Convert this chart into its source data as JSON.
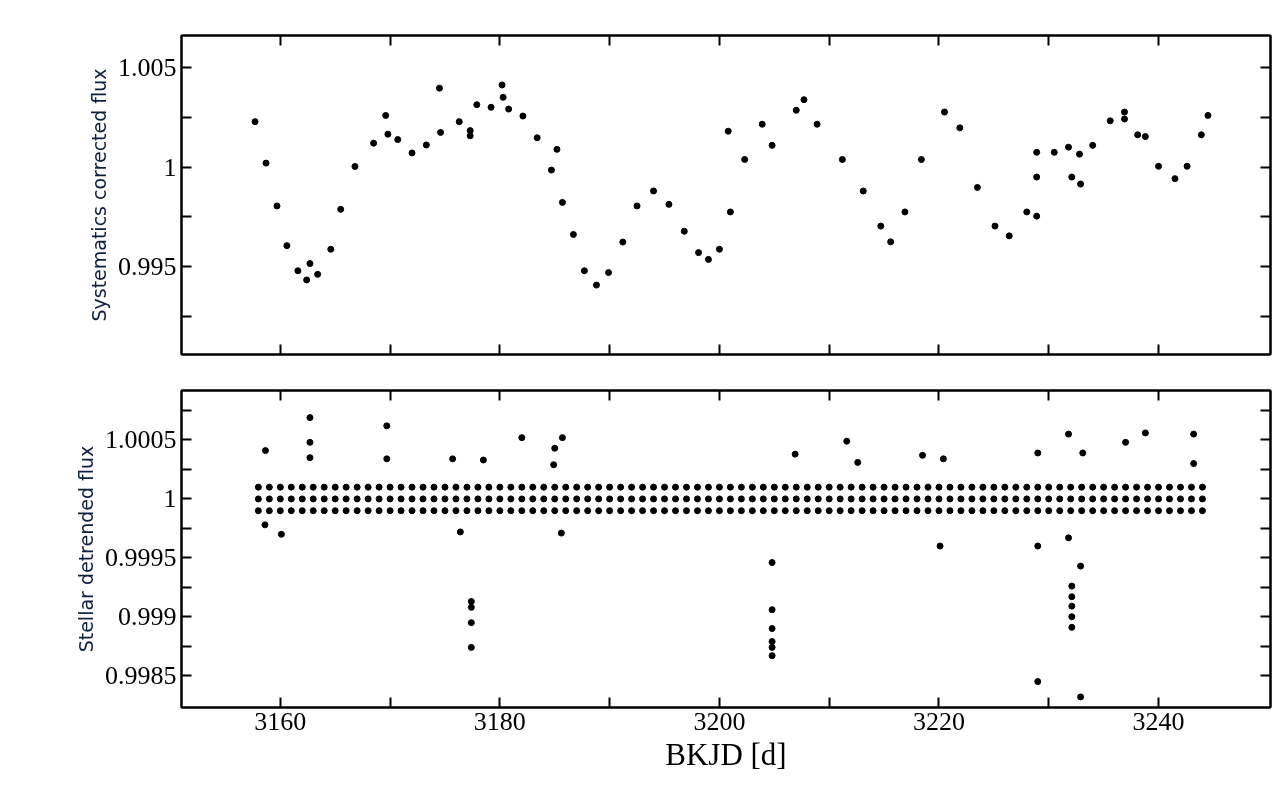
{
  "chart_data": [
    {
      "type": "scatter",
      "ylabel": "Systematics corrected flux",
      "xlim": [
        3151,
        3250.2
      ],
      "ylim": [
        0.9906,
        1.0066
      ],
      "xticks": [
        3160,
        {
          "value": 3170,
          "label": null
        },
        3180,
        {
          "value": 3190,
          "label": null
        },
        3200,
        {
          "value": 3210,
          "label": null
        },
        3220,
        {
          "value": 3230,
          "label": null
        },
        3240
      ],
      "yticks": [
        {
          "value": 0.9925,
          "label": null
        },
        0.995,
        {
          "value": 0.9975,
          "label": null
        },
        1,
        {
          "value": 1.0025,
          "label": null
        },
        1.005
      ],
      "tick_labels": "y",
      "marker": "circle",
      "series": [
        {
          "color": "#000000",
          "x": [
            3157.7,
            3158.7,
            3159.7,
            3160.6,
            3161.6,
            3162.4,
            3163.4,
            3164.6,
            3165.5,
            3166.8,
            3168.5,
            3169.8,
            3170.7,
            3172.0,
            3173.3,
            3174.6,
            3176.3,
            3177.9,
            3179.2,
            3180.8,
            3182.1,
            3183.4,
            3184.7,
            3185.7,
            3186.7,
            3187.7,
            3188.8,
            3189.9,
            3191.2,
            3192.5,
            3194.0,
            3195.4,
            3196.8,
            3198.1,
            3199.0,
            3200.0,
            3201.0,
            3202.3,
            3203.9,
            3207.0,
            3208.9,
            3211.2,
            3213.1,
            3214.7,
            3215.6,
            3216.9,
            3218.4,
            3220.5,
            3221.9,
            3223.5,
            3225.1,
            3226.4,
            3228.0,
            3228.9,
            3230.5,
            3231.8,
            3232.8,
            3234.0,
            3235.6,
            3236.9,
            3238.1,
            3240.0,
            3241.5,
            3242.6,
            3243.9,
            3244.5
          ],
          "values": [
            1.00228,
            1.0002,
            0.99805,
            0.99606,
            0.9948,
            0.99434,
            0.99462,
            0.99588,
            0.99788,
            1.00003,
            1.0012,
            1.00165,
            1.00138,
            1.00071,
            1.00111,
            1.00174,
            1.00228,
            1.00313,
            1.003,
            1.00291,
            1.00256,
            1.00147,
            0.99985,
            0.99823,
            0.99662,
            0.9948,
            0.99408,
            0.99471,
            0.99624,
            0.99805,
            0.9988,
            0.99813,
            0.99678,
            0.99571,
            0.99537,
            0.99588,
            0.99775,
            1.00038,
            1.00215,
            1.00285,
            1.00215,
            1.00038,
            0.9988,
            0.99704,
            0.99625,
            0.99775,
            1.00038,
            1.00276,
            1.00197,
            0.99898,
            0.99704,
            0.99655,
            0.99775,
            0.9995,
            1.00074,
            1.001,
            1.00065,
            1.00109,
            1.00232,
            1.00241,
            1.00162,
            1.00004,
            0.99942,
            1.00004,
            1.00162,
            1.00259
          ]
        },
        {
          "color": "#000000",
          "x": [
            3174.5,
            3180.2,
            3180.3,
            3177.3,
            3177.3,
            3185.2,
            3200.8,
            3169.6,
            3162.7,
            3207.7,
            3204.8,
            3228.9,
            3228.9,
            3232.9,
            3232.1,
            3236.9,
            3238.8
          ],
          "values": [
            1.00396,
            1.00412,
            1.0035,
            1.00183,
            1.00157,
            1.00089,
            1.0018,
            1.00259,
            0.99516,
            1.00338,
            1.00109,
            1.00074,
            0.99754,
            0.99915,
            0.9995,
            1.00276,
            1.00153
          ]
        }
      ]
    },
    {
      "type": "scatter",
      "xlabel": "BKJD [d]",
      "ylabel": "Stellar detrended flux",
      "xlim": [
        3151,
        3250.2
      ],
      "ylim": [
        0.99823,
        1.00092
      ],
      "xticks": [
        3160,
        {
          "value": 3170,
          "label": null
        },
        3180,
        {
          "value": 3190,
          "label": null
        },
        3200,
        {
          "value": 3210,
          "label": null
        },
        3220,
        {
          "value": 3230,
          "label": null
        },
        3240
      ],
      "yticks": [
        0.9985,
        {
          "value": 0.99875,
          "label": null
        },
        0.999,
        {
          "value": 0.99925,
          "label": null
        },
        0.9995,
        {
          "value": 0.99975,
          "label": null
        },
        1,
        {
          "value": 1.00025,
          "label": null
        },
        1.0005,
        {
          "value": 1.00075,
          "label": null
        }
      ],
      "marker": "circle",
      "x": [
        3158,
        3159,
        3160,
        3161,
        3162,
        3163,
        3164,
        3165,
        3166,
        3167,
        3168,
        3169,
        3170,
        3171,
        3172,
        3173,
        3174,
        3175,
        3176,
        3177,
        3178,
        3179,
        3180,
        3181,
        3182,
        3183,
        3184,
        3185,
        3186,
        3187,
        3188,
        3189,
        3190,
        3191,
        3192,
        3193,
        3194,
        3195,
        3196,
        3197,
        3198,
        3199,
        3200,
        3201,
        3202,
        3203,
        3204,
        3205,
        3206,
        3207,
        3208,
        3209,
        3210,
        3211,
        3212,
        3213,
        3214,
        3215,
        3216,
        3217,
        3218,
        3219,
        3220,
        3221,
        3222,
        3223,
        3224,
        3225,
        3226,
        3227,
        3228,
        3229,
        3230,
        3231,
        3232,
        3233,
        3234,
        3235,
        3236,
        3237,
        3238,
        3239,
        3240,
        3241,
        3242,
        3243,
        3244
      ],
      "series": [
        {
          "color": "#000000",
          "values": [
            1.0001,
            1.0001,
            1.0001,
            1.0001,
            1.0001,
            1.0001,
            1.0001,
            1.0001,
            1.0001,
            1.0001,
            1.0001,
            1.0001,
            1.0001,
            1.0001,
            1.0001,
            1.0001,
            1.0001,
            1.0001,
            1.0001,
            1.0001,
            1.0001,
            1.0001,
            1.0001,
            1.0001,
            1.0001,
            1.0001,
            1.0001,
            1.0001,
            1.0001,
            1.0001,
            1.0001,
            1.0001,
            1.0001,
            1.0001,
            1.0001,
            1.0001,
            1.0001,
            1.0001,
            1.0001,
            1.0001,
            1.0001,
            1.0001,
            1.0001,
            1.0001,
            1.0001,
            1.0001,
            1.0001,
            1.0001,
            1.0001,
            1.0001,
            1.0001,
            1.0001,
            1.0001,
            1.0001,
            1.0001,
            1.0001,
            1.0001,
            1.0001,
            1.0001,
            1.0001,
            1.0001,
            1.0001,
            1.0001,
            1.0001,
            1.0001,
            1.0001,
            1.0001,
            1.0001,
            1.0001,
            1.0001,
            1.0001,
            1.0001,
            1.0001,
            1.0001,
            1.0001,
            1.0001,
            1.0001,
            1.0001,
            1.0001,
            1.0001,
            1.0001,
            1.0001,
            1.0001,
            1.0001,
            1.0001,
            1.0001,
            1.0001
          ]
        },
        {
          "color": "#000000",
          "values": [
            1,
            1,
            1,
            1,
            1,
            1,
            1,
            1,
            1,
            1,
            1,
            1,
            1,
            1,
            1,
            1,
            1,
            1,
            1,
            1,
            1,
            1,
            1,
            1,
            1,
            1,
            1,
            1,
            1,
            1,
            1,
            1,
            1,
            1,
            1,
            1,
            1,
            1,
            1,
            1,
            1,
            1,
            1,
            1,
            1,
            1,
            1,
            1,
            1,
            1,
            1,
            1,
            1,
            1,
            1,
            1,
            1,
            1,
            1,
            1,
            1,
            1,
            1,
            1,
            1,
            1,
            1,
            1,
            1,
            1,
            1,
            1,
            1,
            1,
            1,
            1,
            1,
            1,
            1,
            1,
            1,
            1,
            1,
            1,
            1,
            1,
            1
          ]
        },
        {
          "color": "#000000",
          "values": [
            0.9999,
            0.9999,
            0.9999,
            0.9999,
            0.9999,
            0.9999,
            0.9999,
            0.9999,
            0.9999,
            0.9999,
            0.9999,
            0.9999,
            0.9999,
            0.9999,
            0.9999,
            0.9999,
            0.9999,
            0.9999,
            0.9999,
            0.9999,
            0.9999,
            0.9999,
            0.9999,
            0.9999,
            0.9999,
            0.9999,
            0.9999,
            0.9999,
            0.9999,
            0.9999,
            0.9999,
            0.9999,
            0.9999,
            0.9999,
            0.9999,
            0.9999,
            0.9999,
            0.9999,
            0.9999,
            0.9999,
            0.9999,
            0.9999,
            0.9999,
            0.9999,
            0.9999,
            0.9999,
            0.9999,
            0.9999,
            0.9999,
            0.9999,
            0.9999,
            0.9999,
            0.9999,
            0.9999,
            0.9999,
            0.9999,
            0.9999,
            0.9999,
            0.9999,
            0.9999,
            0.9999,
            0.9999,
            0.9999,
            0.9999,
            0.9999,
            0.9999,
            0.9999,
            0.9999,
            0.9999,
            0.9999,
            0.9999,
            0.9999,
            0.9999,
            0.9999,
            0.9999,
            0.9999,
            0.9999,
            0.9999,
            0.9999,
            0.9999,
            0.9999,
            0.9999,
            0.9999,
            0.9999,
            0.9999,
            0.9999,
            0.9999
          ]
        },
        {
          "color": "#000000",
          "x": [
            3158.65,
            3162.7,
            3162.7,
            3162.7,
            3169.7,
            3169.7,
            3175.7,
            3178.5,
            3182.0,
            3185.7,
            3185.0,
            3184.9,
            3160.1,
            3176.4,
            3185.6,
            3177.4,
            3177.4,
            3177.4,
            3177.4,
            3158.6,
            3211.6,
            3206.9,
            3212.6,
            3218.5,
            3220.4,
            3229.0,
            3231.8,
            3233.1,
            3237.0,
            3238.8,
            3243.2,
            3243.2,
            3204.8,
            3204.8,
            3204.8,
            3204.8,
            3204.8,
            3204.8,
            3229.0,
            3232.9,
            3232.1,
            3232.1,
            3232.1,
            3232.1,
            3232.1,
            3232.9,
            3220.1,
            3229.0,
            3231.8
          ],
          "values": [
            1.00041,
            1.00069,
            1.00048,
            1.00035,
            1.00062,
            1.00034,
            1.00034,
            1.00033,
            1.00052,
            1.00052,
            1.00043,
            1.00029,
            0.9997,
            0.99972,
            0.99971,
            0.99913,
            0.99908,
            0.99895,
            0.99874,
            0.99978,
            1.00049,
            1.00038,
            1.00031,
            1.00037,
            1.00034,
            1.00039,
            1.00055,
            1.00039,
            1.00048,
            1.00056,
            1.00055,
            1.0003,
            0.99946,
            0.99906,
            0.9989,
            0.99879,
            0.99874,
            0.99867,
            0.99845,
            0.99832,
            0.99926,
            0.99917,
            0.99909,
            0.999,
            0.99891,
            0.99943,
            0.9996,
            0.9996,
            0.99967
          ]
        }
      ]
    }
  ]
}
